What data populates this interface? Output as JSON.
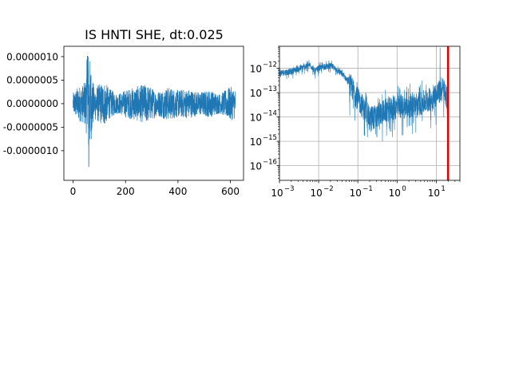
{
  "figure_title": "IS HNTI SHE, dt:0.025",
  "colors": {
    "trace": "#1f77b4",
    "cutoff": "#e00000",
    "grid": "#b0b0b0",
    "axes": "#000000"
  },
  "chart_data": [
    {
      "type": "line",
      "title": "IS HNTI SHE, dt:0.025",
      "xlabel": "",
      "ylabel": "",
      "xlim": [
        -35,
        650
      ],
      "ylim": [
        -1.63e-06,
        1.22e-06
      ],
      "xticks": [
        0,
        200,
        400,
        600
      ],
      "xtick_labels": [
        "0",
        "200",
        "400",
        "600"
      ],
      "yticks": [
        1e-06,
        5e-07,
        0,
        -5e-07,
        -1e-06
      ],
      "ytick_labels": [
        "0.0000010",
        "0.0000005",
        "0.0000000",
        "-0.0000005",
        "-0.0000010"
      ],
      "grid": false,
      "series": [
        {
          "x_start": 0,
          "x_end": 620,
          "baseline": 0,
          "typical_amplitude": 2.5e-07,
          "envelope": [
            [
              0,
              2.2e-07
            ],
            [
              20,
              3.5e-07
            ],
            [
              40,
              4e-07
            ],
            [
              50,
              5.5e-07
            ],
            [
              55,
              1.2e-06
            ],
            [
              60,
              1.1e-06
            ],
            [
              65,
              9e-07
            ],
            [
              80,
              3.2e-07
            ],
            [
              100,
              4e-07
            ],
            [
              120,
              4.5e-07
            ],
            [
              140,
              3e-07
            ],
            [
              170,
              2e-07
            ],
            [
              200,
              2.8e-07
            ],
            [
              240,
              3.5e-07
            ],
            [
              280,
              4e-07
            ],
            [
              320,
              2.5e-07
            ],
            [
              360,
              3.4e-07
            ],
            [
              400,
              2.8e-07
            ],
            [
              440,
              3e-07
            ],
            [
              480,
              2.4e-07
            ],
            [
              520,
              2.8e-07
            ],
            [
              560,
              2e-07
            ],
            [
              600,
              3.5e-07
            ],
            [
              620,
              3e-07
            ]
          ],
          "extremes": {
            "max": 1.01e-06,
            "min": -1.34e-06,
            "max_at": 55,
            "min_at": 60
          }
        }
      ]
    },
    {
      "type": "line",
      "title": "",
      "xlabel": "",
      "ylabel": "",
      "xscale": "log",
      "yscale": "log",
      "xlim": [
        0.001,
        40
      ],
      "ylim": [
        2.5e-17,
        8e-12
      ],
      "xticks": [
        0.001,
        0.01,
        0.1,
        1,
        10
      ],
      "xtick_labels": [
        "10",
        "10",
        "10",
        "10",
        "10"
      ],
      "xtick_exponents": [
        "−3",
        "−2",
        "−1",
        "0",
        "1"
      ],
      "yticks": [
        1e-16,
        1e-15,
        1e-14,
        1e-13,
        1e-12
      ],
      "ytick_labels": [
        "10",
        "10",
        "10",
        "10",
        "10"
      ],
      "ytick_exponents": [
        "−16",
        "−15",
        "−14",
        "−13",
        "−12"
      ],
      "grid": true,
      "series": [
        {
          "spectrum": [
            [
              0.001,
              7e-13
            ],
            [
              0.002,
              8e-13
            ],
            [
              0.004,
              1.2e-12
            ],
            [
              0.006,
              1.5e-12
            ],
            [
              0.008,
              8e-13
            ],
            [
              0.01,
              1.1e-12
            ],
            [
              0.02,
              1.4e-12
            ],
            [
              0.03,
              9e-13
            ],
            [
              0.05,
              4e-13
            ],
            [
              0.08,
              1.5e-13
            ],
            [
              0.1,
              7e-14
            ],
            [
              0.15,
              2.5e-14
            ],
            [
              0.2,
              1.2e-14
            ],
            [
              0.3,
              1.5e-14
            ],
            [
              0.5,
              2.5e-14
            ],
            [
              1,
              3.5e-14
            ],
            [
              2,
              4e-14
            ],
            [
              4,
              5e-14
            ],
            [
              8,
              8e-14
            ],
            [
              12,
              1.5e-13
            ],
            [
              15,
              2e-13
            ],
            [
              18,
              1e-13
            ],
            [
              20,
              6e-15
            ]
          ],
          "peak": {
            "frequency": 12.5,
            "value": 7e-12
          }
        }
      ],
      "cutoff_frequency": 20
    }
  ]
}
